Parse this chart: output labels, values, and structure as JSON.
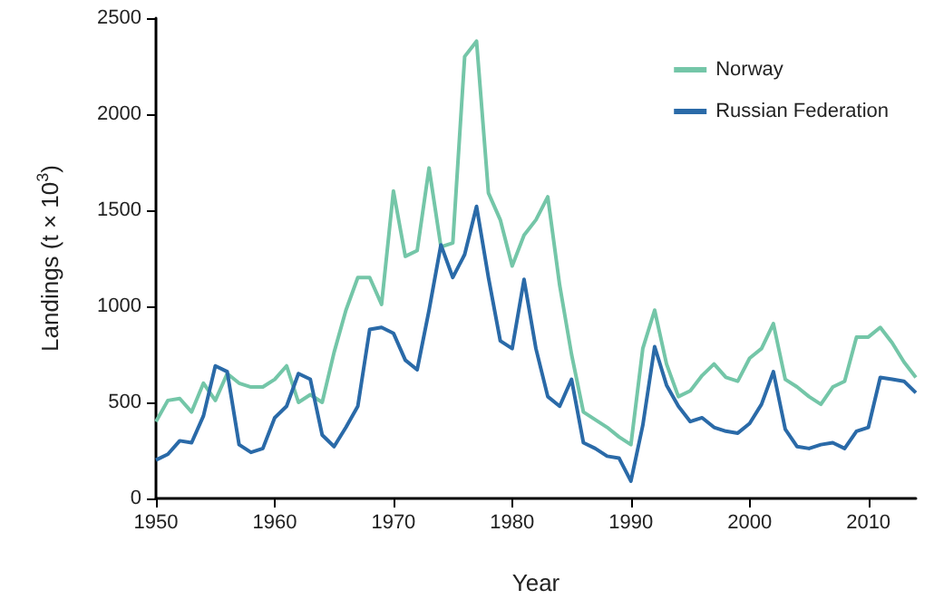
{
  "chart_data": {
    "type": "line",
    "xlabel": "Year",
    "ylabel": "Landings (t × 10$^{3}$)",
    "x": [
      1950,
      1951,
      1952,
      1953,
      1954,
      1955,
      1956,
      1957,
      1958,
      1959,
      1960,
      1961,
      1962,
      1963,
      1964,
      1965,
      1966,
      1967,
      1968,
      1969,
      1970,
      1971,
      1972,
      1973,
      1974,
      1975,
      1976,
      1977,
      1978,
      1979,
      1980,
      1981,
      1982,
      1983,
      1984,
      1985,
      1986,
      1987,
      1988,
      1989,
      1990,
      1991,
      1992,
      1993,
      1994,
      1995,
      1996,
      1997,
      1998,
      1999,
      2000,
      2001,
      2002,
      2003,
      2004,
      2005,
      2006,
      2007,
      2008,
      2009,
      2010,
      2011,
      2012,
      2013,
      2014
    ],
    "series": [
      {
        "name": "Norway",
        "color": "#74c6a8",
        "values": [
          400,
          510,
          520,
          450,
          600,
          510,
          650,
          600,
          580,
          580,
          620,
          690,
          500,
          540,
          500,
          760,
          980,
          1150,
          1150,
          1010,
          1600,
          1260,
          1290,
          1720,
          1310,
          1330,
          2300,
          2380,
          1590,
          1450,
          1210,
          1370,
          1450,
          1570,
          1110,
          750,
          450,
          410,
          370,
          320,
          280,
          780,
          980,
          700,
          530,
          560,
          640,
          700,
          630,
          610,
          730,
          780,
          910,
          620,
          580,
          530,
          490,
          580,
          610,
          840,
          840,
          890,
          810,
          710,
          630
        ]
      },
      {
        "name": "Russian Federation",
        "color": "#2a6aa8",
        "values": [
          200,
          230,
          300,
          290,
          430,
          690,
          660,
          280,
          240,
          260,
          420,
          480,
          650,
          620,
          330,
          270,
          370,
          480,
          880,
          890,
          860,
          720,
          670,
          980,
          1320,
          1150,
          1270,
          1520,
          1150,
          820,
          780,
          1140,
          780,
          530,
          480,
          620,
          290,
          260,
          220,
          210,
          90,
          380,
          790,
          590,
          480,
          400,
          420,
          370,
          350,
          340,
          390,
          490,
          660,
          360,
          270,
          260,
          280,
          290,
          260,
          350,
          370,
          630,
          620,
          610,
          550
        ]
      }
    ],
    "xlim": [
      1950,
      2014
    ],
    "xticks": [
      1950,
      1960,
      1970,
      1980,
      1990,
      2000,
      2010
    ],
    "ylim": [
      0,
      2500
    ],
    "yticks": [
      0,
      500,
      1000,
      1500,
      2000,
      2500
    ],
    "grid": false,
    "legend": "top right",
    "marker": "none",
    "line_style": "solid"
  }
}
